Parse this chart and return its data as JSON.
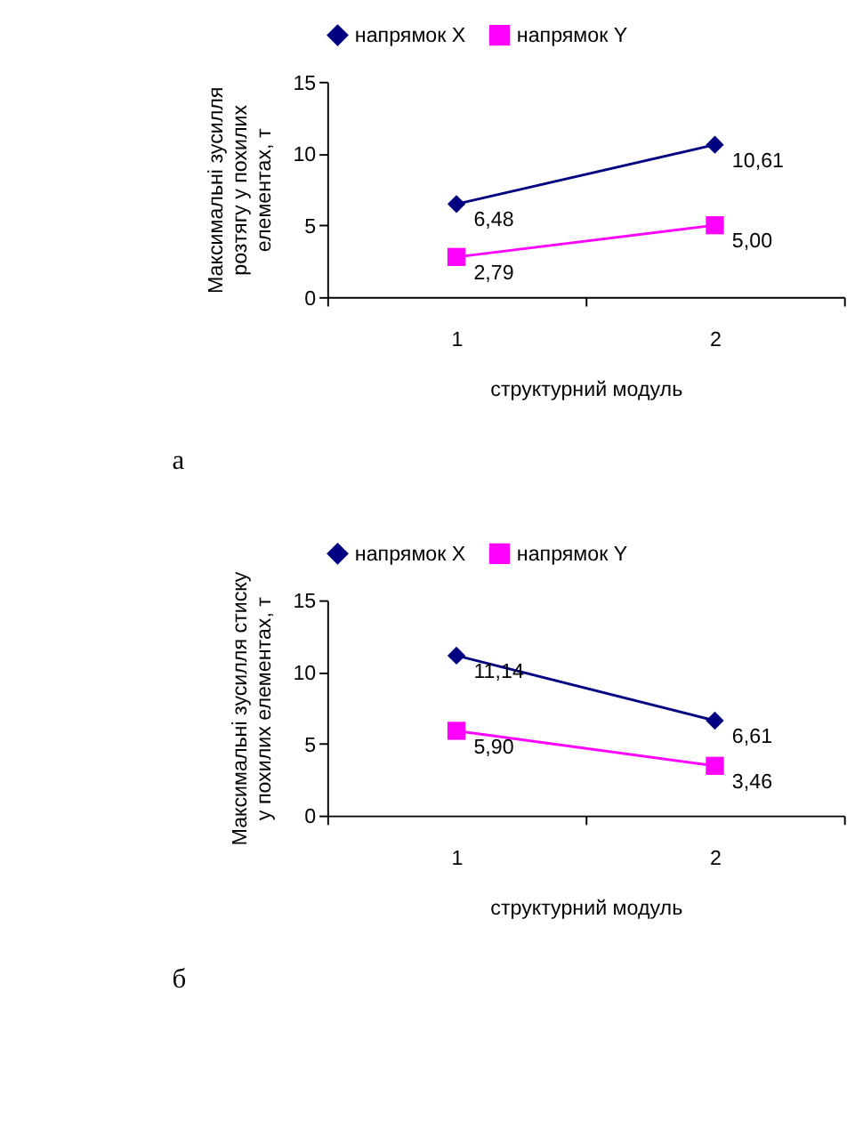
{
  "chart_data": [
    {
      "type": "line",
      "xlabel": "структурний модуль",
      "ylabel": "Максимальні зусилля\nрозтягу у похилих\nелементах, т",
      "categories": [
        "1",
        "2"
      ],
      "ylim": [
        0,
        15
      ],
      "yticks": [
        0,
        5,
        10,
        15
      ],
      "grid": false,
      "legend": "top",
      "line_style": "solid",
      "annotations": [
        "а"
      ],
      "series": [
        {
          "name": "напрямок X",
          "color": "#000080",
          "marker": "diamond",
          "values": [
            6.48,
            10.61
          ],
          "value_labels": [
            "6,48",
            "10,61"
          ]
        },
        {
          "name": "напрямок Y",
          "color": "#ff00ff",
          "marker": "square",
          "values": [
            2.79,
            5.0
          ],
          "value_labels": [
            "2,79",
            "5,00"
          ]
        }
      ]
    },
    {
      "type": "line",
      "xlabel": "структурний модуль",
      "ylabel": "Максимальні зусилля стиску\nу похилих елементах, т",
      "categories": [
        "1",
        "2"
      ],
      "ylim": [
        0,
        15
      ],
      "yticks": [
        0,
        5,
        10,
        15
      ],
      "grid": false,
      "legend": "top",
      "line_style": "solid",
      "annotations": [
        "б"
      ],
      "series": [
        {
          "name": "напрямок X",
          "color": "#000080",
          "marker": "diamond",
          "values": [
            11.14,
            6.61
          ],
          "value_labels": [
            "11,14",
            "6,61"
          ]
        },
        {
          "name": "напрямок Y",
          "color": "#ff00ff",
          "marker": "square",
          "values": [
            5.9,
            3.46
          ],
          "value_labels": [
            "5,90",
            "3,46"
          ]
        }
      ]
    }
  ]
}
